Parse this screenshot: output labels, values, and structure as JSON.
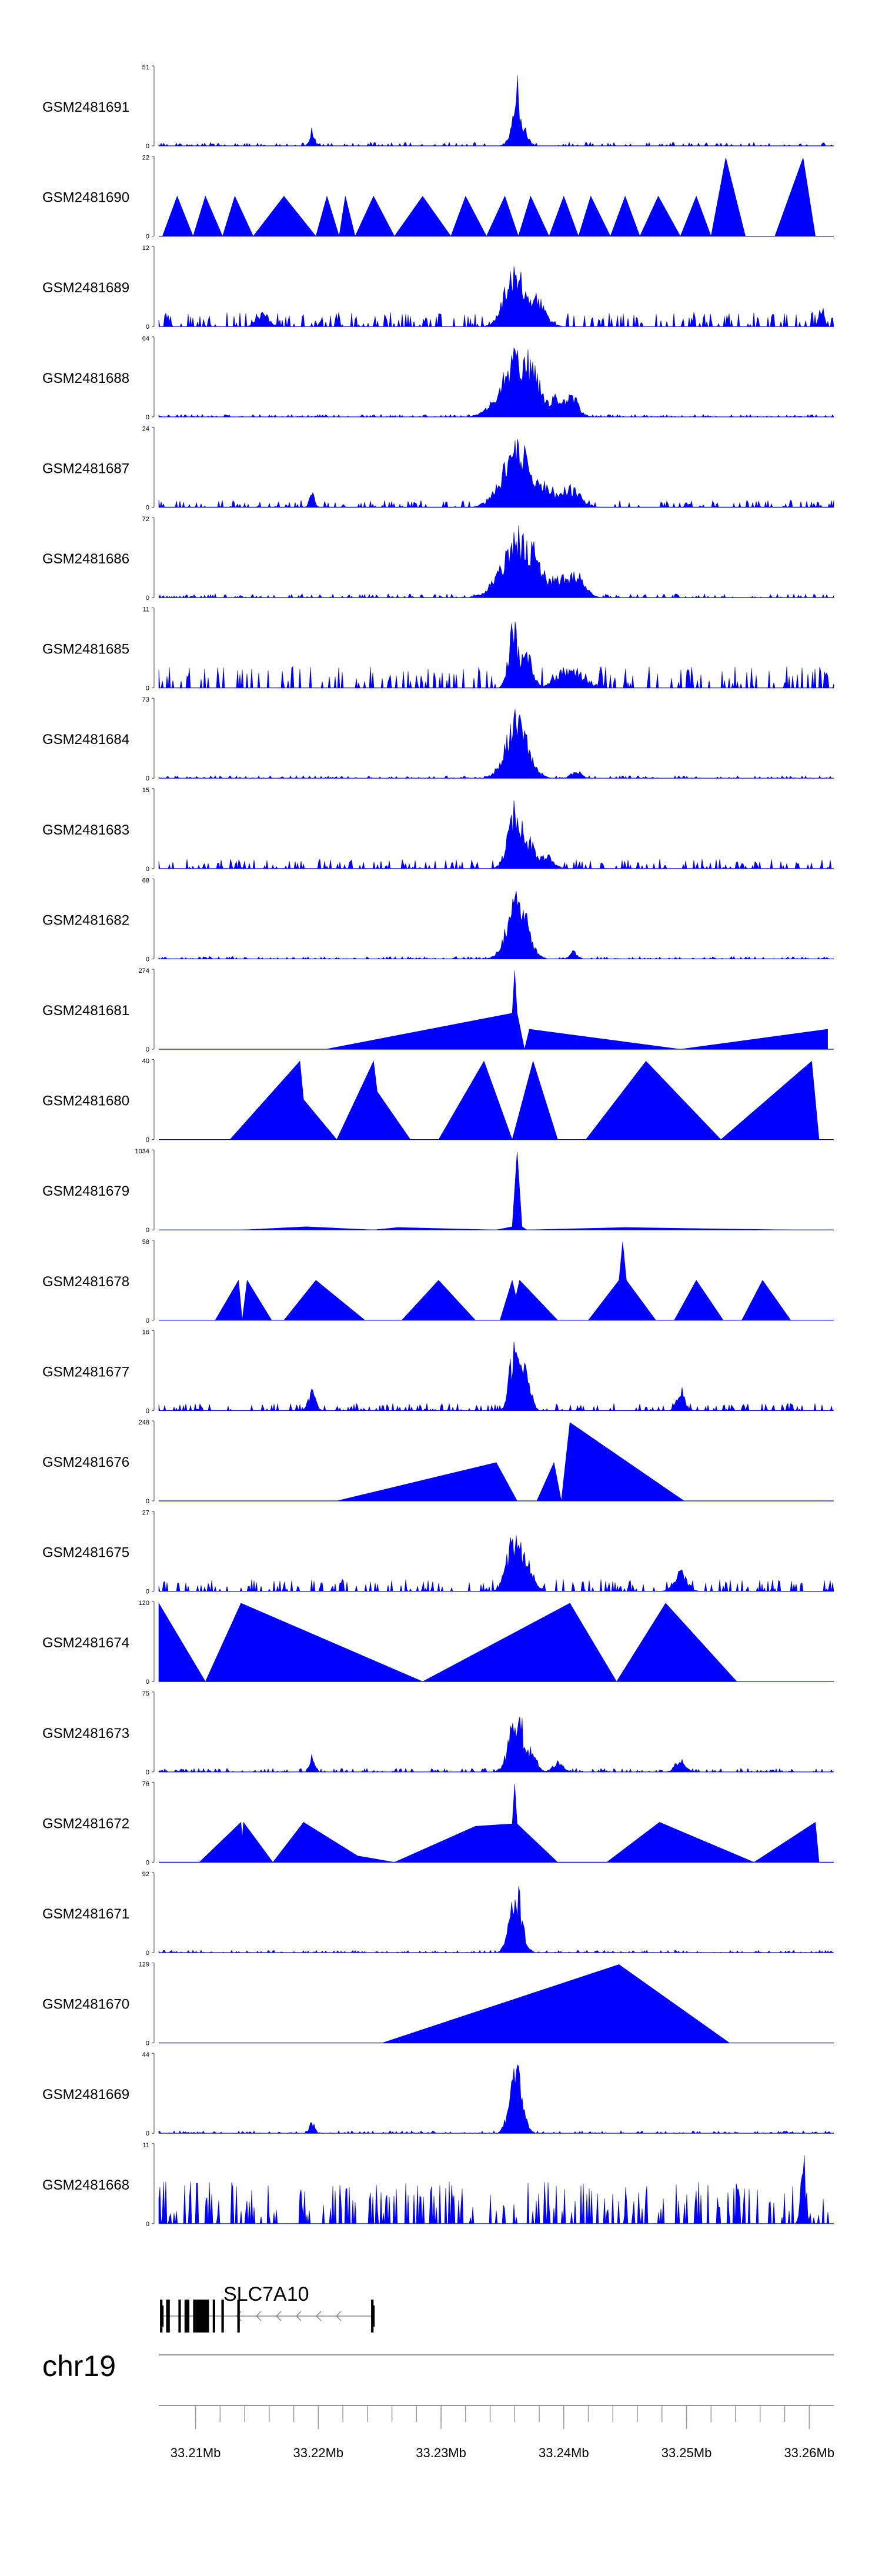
{
  "chart_data": {
    "type": "area",
    "chromosome": "chr19",
    "xlim": [
      33.207,
      33.262
    ],
    "x_unit": "Mb",
    "fill_color": "#0000ff",
    "gene": {
      "name": "SLC7A10",
      "start": 33.2071,
      "end": 33.2245,
      "strand": "-"
    },
    "tick_labels": [
      "33.21Mb",
      "33.22Mb",
      "33.23Mb",
      "33.24Mb",
      "33.25Mb",
      "33.26Mb"
    ],
    "tracks": [
      {
        "name": "GSM2481691",
        "ymax": "51",
        "ymin": "0",
        "style": "dense",
        "seed": 11,
        "base": 0.03,
        "peaks": [
          [
            33.2361,
            1.0,
            0.00025
          ],
          [
            33.2363,
            0.5,
            0.0005
          ],
          [
            33.2195,
            0.25,
            0.0002
          ]
        ]
      },
      {
        "name": "GSM2481690",
        "ymax": "22",
        "ymin": "0",
        "style": "tri",
        "pts": [
          [
            33.2073,
            0
          ],
          [
            33.2085,
            0.5
          ],
          [
            33.2098,
            0
          ],
          [
            33.2108,
            0.5
          ],
          [
            33.2122,
            0
          ],
          [
            33.2132,
            0.5
          ],
          [
            33.2147,
            0
          ],
          [
            33.2172,
            0.5
          ],
          [
            33.2198,
            0
          ],
          [
            33.2207,
            0.5
          ],
          [
            33.2217,
            0
          ],
          [
            33.2222,
            0.5
          ],
          [
            33.223,
            0
          ],
          [
            33.2245,
            0.5
          ],
          [
            33.2262,
            0
          ],
          [
            33.2285,
            0.5
          ],
          [
            33.2308,
            0
          ],
          [
            33.232,
            0.5
          ],
          [
            33.2337,
            0
          ],
          [
            33.2352,
            0.5
          ],
          [
            33.2363,
            0
          ],
          [
            33.2373,
            0.5
          ],
          [
            33.2388,
            0
          ],
          [
            33.24,
            0.5
          ],
          [
            33.2412,
            0
          ],
          [
            33.2422,
            0.5
          ],
          [
            33.2438,
            0
          ],
          [
            33.245,
            0.5
          ],
          [
            33.2462,
            0
          ],
          [
            33.2477,
            0.5
          ],
          [
            33.2495,
            0
          ],
          [
            33.2508,
            0.5
          ],
          [
            33.252,
            0
          ],
          [
            33.2532,
            0.98
          ],
          [
            33.2548,
            0
          ],
          [
            33.2572,
            0
          ],
          [
            33.2595,
            0.98
          ],
          [
            33.2605,
            0
          ]
        ]
      },
      {
        "name": "GSM2481689",
        "ymax": "12",
        "ymin": "0",
        "style": "dense",
        "seed": 23,
        "base": 0.12,
        "peaks": [
          [
            33.236,
            0.9,
            0.0008
          ],
          [
            33.2375,
            0.5,
            0.0008
          ],
          [
            33.2155,
            0.2,
            0.0005
          ],
          [
            33.261,
            0.3,
            0.0002
          ]
        ]
      },
      {
        "name": "GSM2481688",
        "ymax": "64",
        "ymin": "0",
        "style": "dense",
        "seed": 37,
        "base": 0.02,
        "peaks": [
          [
            33.2365,
            0.95,
            0.0014
          ],
          [
            33.2395,
            0.3,
            0.0008
          ],
          [
            33.2405,
            0.35,
            0.0006
          ]
        ]
      },
      {
        "name": "GSM2481687",
        "ymax": "24",
        "ymin": "0",
        "style": "dense",
        "seed": 41,
        "base": 0.06,
        "peaks": [
          [
            33.2362,
            0.92,
            0.0012
          ],
          [
            33.2385,
            0.35,
            0.0008
          ],
          [
            33.2405,
            0.3,
            0.0008
          ],
          [
            33.2195,
            0.25,
            0.0002
          ]
        ]
      },
      {
        "name": "GSM2481686",
        "ymax": "72",
        "ymin": "0",
        "style": "dense",
        "seed": 53,
        "base": 0.03,
        "peaks": [
          [
            33.2365,
            0.95,
            0.0014
          ],
          [
            33.2395,
            0.35,
            0.0008
          ],
          [
            33.241,
            0.38,
            0.0007
          ]
        ]
      },
      {
        "name": "GSM2481685",
        "ymax": "11",
        "ymin": "0",
        "style": "dense",
        "seed": 61,
        "base": 0.18,
        "peaks": [
          [
            33.2359,
            0.98,
            0.0004
          ],
          [
            33.2368,
            0.55,
            0.0006
          ],
          [
            33.2405,
            0.3,
            0.001
          ]
        ]
      },
      {
        "name": "GSM2481684",
        "ymax": "73",
        "ymin": "0",
        "style": "dense",
        "seed": 67,
        "base": 0.02,
        "peaks": [
          [
            33.2362,
            0.92,
            0.0009
          ],
          [
            33.241,
            0.12,
            0.0004
          ]
        ]
      },
      {
        "name": "GSM2481683",
        "ymax": "15",
        "ymin": "0",
        "style": "dense",
        "seed": 71,
        "base": 0.08,
        "peaks": [
          [
            33.2361,
            0.95,
            0.0006
          ],
          [
            33.2372,
            0.45,
            0.0005
          ],
          [
            33.2385,
            0.2,
            0.0006
          ]
        ]
      },
      {
        "name": "GSM2481682",
        "ymax": "68",
        "ymin": "0",
        "style": "dense",
        "seed": 79,
        "base": 0.02,
        "peaks": [
          [
            33.2362,
            0.95,
            0.0008
          ],
          [
            33.2408,
            0.12,
            0.0003
          ]
        ]
      },
      {
        "name": "GSM2481681",
        "ymax": "274",
        "ymin": "0",
        "style": "tri",
        "pts": [
          [
            33.2206,
            0
          ],
          [
            33.2358,
            0.45
          ],
          [
            33.236,
            0.98
          ],
          [
            33.2362,
            0.45
          ],
          [
            33.2368,
            0
          ],
          [
            33.2372,
            0.25
          ],
          [
            33.2495,
            0
          ],
          [
            33.2615,
            0.25
          ],
          [
            33.2615,
            0
          ]
        ]
      },
      {
        "name": "GSM2481680",
        "ymax": "40",
        "ymin": "0",
        "style": "tri",
        "pts": [
          [
            33.2128,
            0
          ],
          [
            33.2185,
            0.98
          ],
          [
            33.2188,
            0.5
          ],
          [
            33.2215,
            0
          ],
          [
            33.2245,
            0.98
          ],
          [
            33.2248,
            0.6
          ],
          [
            33.2275,
            0
          ],
          [
            33.2298,
            0
          ],
          [
            33.2335,
            0.98
          ],
          [
            33.2358,
            0
          ],
          [
            33.2375,
            0.98
          ],
          [
            33.2395,
            0
          ],
          [
            33.2418,
            0
          ],
          [
            33.2467,
            0.98
          ],
          [
            33.2528,
            0
          ],
          [
            33.2602,
            0.98
          ],
          [
            33.2608,
            0
          ]
        ]
      },
      {
        "name": "GSM2481679",
        "ymax": "1034",
        "ymin": "0",
        "style": "tri",
        "pts": [
          [
            33.2138,
            0
          ],
          [
            33.219,
            0.04
          ],
          [
            33.2245,
            0
          ],
          [
            33.2265,
            0.03
          ],
          [
            33.2345,
            0
          ],
          [
            33.2358,
            0.04
          ],
          [
            33.2362,
            0.98
          ],
          [
            33.2366,
            0.04
          ],
          [
            33.237,
            0
          ],
          [
            33.245,
            0.03
          ],
          [
            33.2585,
            0
          ]
        ]
      },
      {
        "name": "GSM2481678",
        "ymax": "58",
        "ymin": "0",
        "style": "tri",
        "pts": [
          [
            33.2116,
            0
          ],
          [
            33.2135,
            0.5
          ],
          [
            33.2138,
            0
          ],
          [
            33.2142,
            0.5
          ],
          [
            33.2162,
            0
          ],
          [
            33.2172,
            0
          ],
          [
            33.2198,
            0.5
          ],
          [
            33.2238,
            0
          ],
          [
            33.2268,
            0
          ],
          [
            33.2298,
            0.5
          ],
          [
            33.2328,
            0
          ],
          [
            33.2348,
            0
          ],
          [
            33.2358,
            0.5
          ],
          [
            33.2361,
            0.3
          ],
          [
            33.2364,
            0.5
          ],
          [
            33.2395,
            0
          ],
          [
            33.242,
            0
          ],
          [
            33.2445,
            0.5
          ],
          [
            33.2448,
            0.98
          ],
          [
            33.2451,
            0.5
          ],
          [
            33.2475,
            0
          ],
          [
            33.249,
            0
          ],
          [
            33.2508,
            0.5
          ],
          [
            33.253,
            0
          ],
          [
            33.2545,
            0
          ],
          [
            33.2562,
            0.5
          ],
          [
            33.2585,
            0
          ]
        ]
      },
      {
        "name": "GSM2481677",
        "ymax": "16",
        "ymin": "0",
        "style": "dense",
        "seed": 83,
        "base": 0.06,
        "peaks": [
          [
            33.236,
            0.98,
            0.0004
          ],
          [
            33.2368,
            0.8,
            0.0004
          ],
          [
            33.2195,
            0.3,
            0.0003
          ],
          [
            33.2495,
            0.35,
            0.0003
          ]
        ]
      },
      {
        "name": "GSM2481676",
        "ymax": "248",
        "ymin": "0",
        "style": "tri",
        "pts": [
          [
            33.2215,
            0
          ],
          [
            33.2345,
            0.48
          ],
          [
            33.2362,
            0
          ],
          [
            33.2378,
            0
          ],
          [
            33.2392,
            0.48
          ],
          [
            33.2398,
            0
          ],
          [
            33.2405,
            0.98
          ],
          [
            33.2498,
            0
          ]
        ]
      },
      {
        "name": "GSM2481675",
        "ymax": "27",
        "ymin": "0",
        "style": "dense",
        "seed": 89,
        "base": 0.1,
        "peaks": [
          [
            33.236,
            0.92,
            0.0006
          ],
          [
            33.2368,
            0.5,
            0.0006
          ],
          [
            33.2495,
            0.3,
            0.0005
          ]
        ]
      },
      {
        "name": "GSM2481674",
        "ymax": "120",
        "ymin": "0",
        "style": "tri",
        "pts": [
          [
            33.207,
            0
          ],
          [
            33.207,
            0.98
          ],
          [
            33.2108,
            0
          ],
          [
            33.2137,
            0.98
          ],
          [
            33.2285,
            0
          ],
          [
            33.2405,
            0.98
          ],
          [
            33.2443,
            0
          ],
          [
            33.2483,
            0.98
          ],
          [
            33.2541,
            0
          ]
        ]
      },
      {
        "name": "GSM2481673",
        "ymax": "75",
        "ymin": "0",
        "style": "dense",
        "seed": 97,
        "base": 0.03,
        "peaks": [
          [
            33.2362,
            0.9,
            0.0006
          ],
          [
            33.2372,
            0.35,
            0.0005
          ],
          [
            33.2195,
            0.25,
            0.0002
          ],
          [
            33.2395,
            0.15,
            0.0004
          ],
          [
            33.2495,
            0.2,
            0.0004
          ]
        ]
      },
      {
        "name": "GSM2481672",
        "ymax": "76",
        "ymin": "0",
        "style": "tri",
        "pts": [
          [
            33.2103,
            0
          ],
          [
            33.2137,
            0.5
          ],
          [
            33.2138,
            0.3
          ],
          [
            33.2139,
            0.5
          ],
          [
            33.2163,
            0
          ],
          [
            33.2188,
            0.5
          ],
          [
            33.2232,
            0.08
          ],
          [
            33.2262,
            0
          ],
          [
            33.2328,
            0.45
          ],
          [
            33.2358,
            0.48
          ],
          [
            33.236,
            0.98
          ],
          [
            33.2362,
            0.48
          ],
          [
            33.2395,
            0
          ],
          [
            33.2435,
            0
          ],
          [
            33.2478,
            0.5
          ],
          [
            33.2555,
            0
          ],
          [
            33.2605,
            0.5
          ],
          [
            33.2608,
            0
          ]
        ]
      },
      {
        "name": "GSM2481671",
        "ymax": "92",
        "ymin": "0",
        "style": "dense",
        "seed": 101,
        "base": 0.02,
        "peaks": [
          [
            33.2361,
            0.95,
            0.0005
          ]
        ]
      },
      {
        "name": "GSM2481670",
        "ymax": "129",
        "ymin": "0",
        "style": "tri",
        "pts": [
          [
            33.2252,
            0
          ],
          [
            33.2445,
            0.98
          ],
          [
            33.2535,
            0
          ]
        ]
      },
      {
        "name": "GSM2481669",
        "ymax": "44",
        "ymin": "0",
        "style": "dense",
        "seed": 107,
        "base": 0.02,
        "peaks": [
          [
            33.2361,
            0.98,
            0.0005
          ],
          [
            33.2195,
            0.18,
            0.0002
          ]
        ]
      },
      {
        "name": "GSM2481668",
        "ymax": "11",
        "ymin": "0",
        "style": "dense",
        "seed": 113,
        "base": 0.35,
        "peaks": [
          [
            33.2595,
            0.98,
            0.0002
          ]
        ]
      }
    ]
  }
}
